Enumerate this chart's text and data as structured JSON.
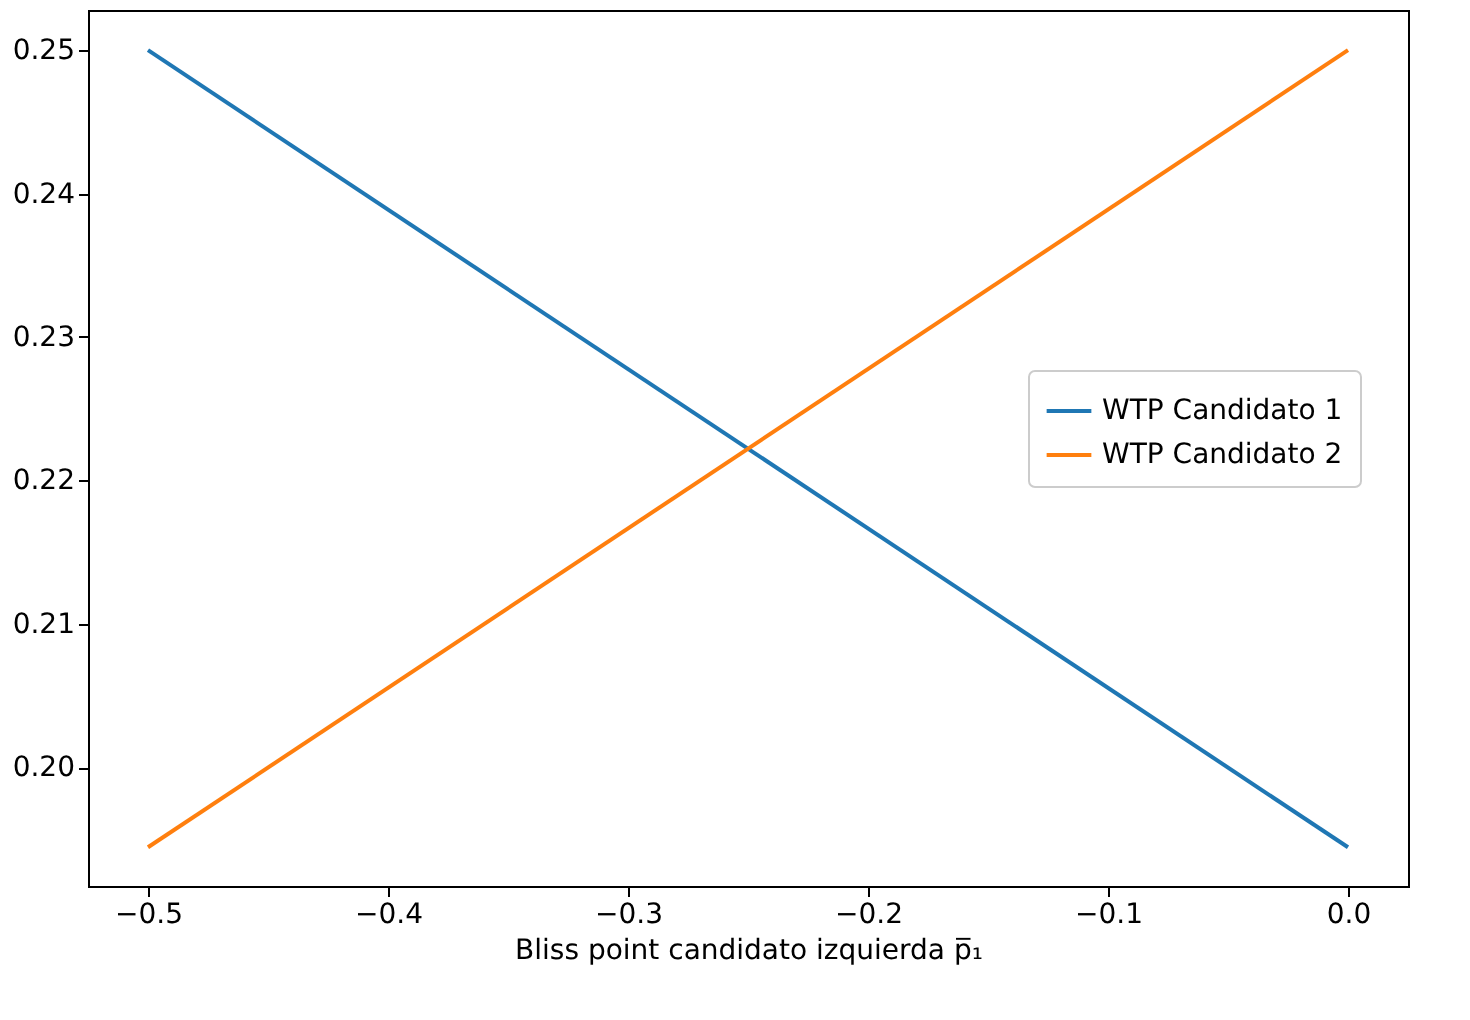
{
  "chart_data": {
    "type": "line",
    "xlabel": "Bliss point candidato izquierda p̅₁",
    "x": [
      -0.5,
      0.0
    ],
    "series": [
      {
        "name": "WTP Candidato 1",
        "color": "#1f77b4",
        "values": [
          0.25,
          0.1944
        ]
      },
      {
        "name": "WTP Candidato 2",
        "color": "#ff7f0e",
        "values": [
          0.1944,
          0.25
        ]
      }
    ],
    "xlim": [
      -0.525,
      0.025
    ],
    "xticks": [
      {
        "value": -0.5,
        "label": "−0.5"
      },
      {
        "value": -0.4,
        "label": "−0.4"
      },
      {
        "value": -0.3,
        "label": "−0.3"
      },
      {
        "value": -0.2,
        "label": "−0.2"
      },
      {
        "value": -0.1,
        "label": "−0.1"
      },
      {
        "value": 0.0,
        "label": "0.0"
      }
    ],
    "ylim": [
      0.1917,
      0.2528
    ],
    "yticks": [
      {
        "value": 0.2,
        "label": "0.20"
      },
      {
        "value": 0.21,
        "label": "0.21"
      },
      {
        "value": 0.22,
        "label": "0.22"
      },
      {
        "value": 0.23,
        "label": "0.23"
      },
      {
        "value": 0.24,
        "label": "0.24"
      },
      {
        "value": 0.25,
        "label": "0.25"
      }
    ],
    "grid": false,
    "legend": "right",
    "line_style": "solid",
    "marker": "none"
  }
}
